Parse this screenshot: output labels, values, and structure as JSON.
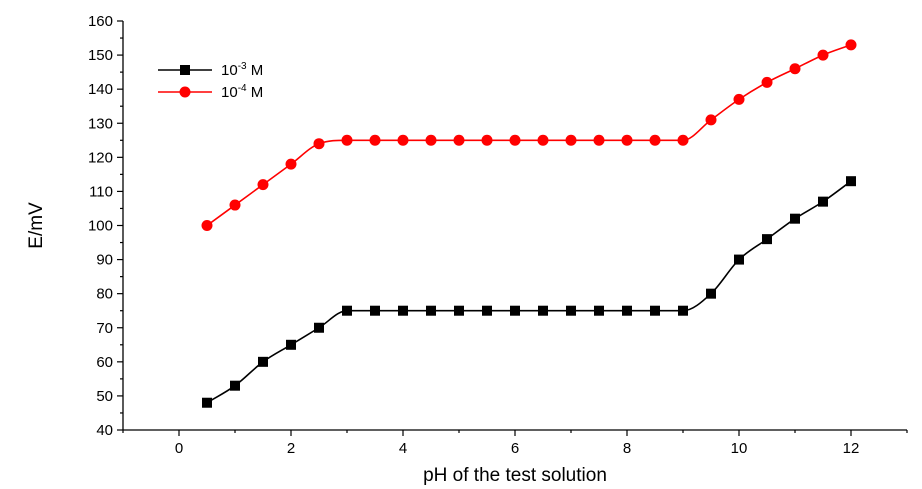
{
  "chart_data": {
    "type": "line",
    "title": "",
    "xlabel": "pH of the test solution",
    "ylabel": "E/mV",
    "xlim": [
      -1,
      13
    ],
    "ylim": [
      40,
      160
    ],
    "xticks": [
      0,
      2,
      4,
      6,
      8,
      10,
      12
    ],
    "yticks": [
      40,
      50,
      60,
      70,
      80,
      90,
      100,
      110,
      120,
      130,
      140,
      150,
      160
    ],
    "grid": false,
    "legend_position": "top-left",
    "x": [
      0.5,
      1.0,
      1.5,
      2.0,
      2.5,
      3.0,
      3.5,
      4.0,
      4.5,
      5.0,
      5.5,
      6.0,
      6.5,
      7.0,
      7.5,
      8.0,
      8.5,
      9.0,
      9.5,
      10.0,
      10.5,
      11.0,
      11.5,
      12.0
    ],
    "series": [
      {
        "name_base": "10",
        "name_exp": "-3",
        "name_unit": " M",
        "color": "#000000",
        "marker": "square",
        "values": [
          48,
          53,
          60,
          65,
          70,
          75,
          75,
          75,
          75,
          75,
          75,
          75,
          75,
          75,
          75,
          75,
          75,
          75,
          80,
          90,
          96,
          102,
          107,
          113
        ]
      },
      {
        "name_base": "10",
        "name_exp": "-4",
        "name_unit": " M",
        "color": "#ff0000",
        "marker": "circle",
        "values": [
          100,
          106,
          112,
          118,
          124,
          125,
          125,
          125,
          125,
          125,
          125,
          125,
          125,
          125,
          125,
          125,
          125,
          125,
          131,
          137,
          142,
          146,
          150,
          153
        ]
      }
    ]
  }
}
